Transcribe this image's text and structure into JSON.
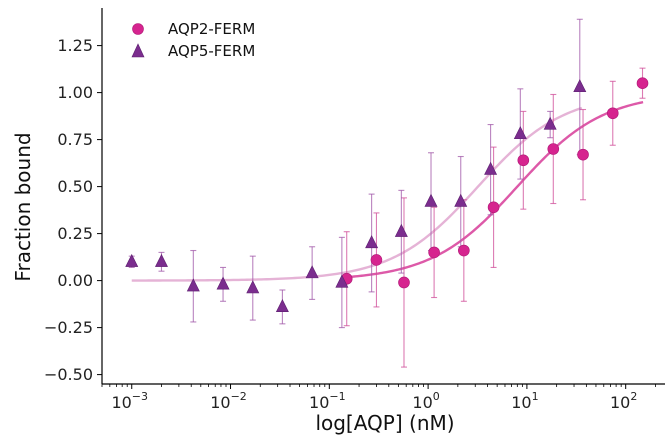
{
  "chart_data": {
    "type": "scatter",
    "title": "",
    "xlabel": "log[AQP] (nM)",
    "ylabel": "Fraction bound",
    "xscale": "log",
    "xlim": [
      0.0005,
      250
    ],
    "ylim": [
      -0.55,
      1.45
    ],
    "yticks": [
      -0.5,
      -0.25,
      0.0,
      0.25,
      0.5,
      0.75,
      1.0,
      1.25
    ],
    "ytick_labels": [
      "−0.50",
      "−0.25",
      "0.00",
      "0.25",
      "0.50",
      "0.75",
      "1.00",
      "1.25"
    ],
    "xticks": [
      0.001,
      0.01,
      0.1,
      1,
      10,
      100
    ],
    "xtick_labels": [
      {
        "base": "10",
        "exp": "−3"
      },
      {
        "base": "10",
        "exp": "−2"
      },
      {
        "base": "10",
        "exp": "−1"
      },
      {
        "base": "10",
        "exp": "0"
      },
      {
        "base": "10",
        "exp": "1"
      },
      {
        "base": "10",
        "exp": "2"
      }
    ],
    "grid": false,
    "legend_position": "top-left",
    "series": [
      {
        "name": "AQP2-FERM",
        "marker": "circle",
        "color": "#d6248f",
        "fit_color": "#d9479f",
        "fit": {
          "bottom": 0.0,
          "top": 1.0,
          "kd": 8.0,
          "xmin": 0.15,
          "xmax": 150
        },
        "points": [
          {
            "x": 0.15,
            "y": 0.01,
            "err": 0.25
          },
          {
            "x": 0.3,
            "y": 0.11,
            "err": 0.25
          },
          {
            "x": 0.57,
            "y": -0.01,
            "err": 0.45
          },
          {
            "x": 1.15,
            "y": 0.15,
            "err": 0.24
          },
          {
            "x": 2.3,
            "y": 0.16,
            "err": 0.27
          },
          {
            "x": 4.6,
            "y": 0.39,
            "err": 0.32
          },
          {
            "x": 9.2,
            "y": 0.64,
            "err": 0.26
          },
          {
            "x": 18.5,
            "y": 0.7,
            "err": 0.29
          },
          {
            "x": 37,
            "y": 0.67,
            "err": 0.24
          },
          {
            "x": 74,
            "y": 0.89,
            "err": 0.17
          },
          {
            "x": 148,
            "y": 1.05,
            "err": 0.08
          }
        ]
      },
      {
        "name": "AQP5-FERM",
        "marker": "triangle",
        "color": "#7b2d8e",
        "fit_color": "#e0a6cf",
        "fit": {
          "bottom": 0.0,
          "top": 1.0,
          "kd": 3.2,
          "xmin": 0.001,
          "xmax": 36
        },
        "points": [
          {
            "x": 0.001,
            "y": 0.1,
            "err": 0.03
          },
          {
            "x": 0.002,
            "y": 0.1,
            "err": 0.05
          },
          {
            "x": 0.0042,
            "y": -0.03,
            "err": 0.19
          },
          {
            "x": 0.0084,
            "y": -0.02,
            "err": 0.09
          },
          {
            "x": 0.0168,
            "y": -0.04,
            "err": 0.17
          },
          {
            "x": 0.0335,
            "y": -0.14,
            "err": 0.09
          },
          {
            "x": 0.067,
            "y": 0.04,
            "err": 0.14
          },
          {
            "x": 0.134,
            "y": -0.01,
            "err": 0.24
          },
          {
            "x": 0.268,
            "y": 0.2,
            "err": 0.26
          },
          {
            "x": 0.536,
            "y": 0.26,
            "err": 0.22
          },
          {
            "x": 1.07,
            "y": 0.42,
            "err": 0.26
          },
          {
            "x": 2.14,
            "y": 0.42,
            "err": 0.24
          },
          {
            "x": 4.29,
            "y": 0.59,
            "err": 0.24
          },
          {
            "x": 8.58,
            "y": 0.78,
            "err": 0.24
          },
          {
            "x": 17.2,
            "y": 0.83,
            "err": 0.07
          },
          {
            "x": 34.3,
            "y": 1.03,
            "err": 0.36
          }
        ]
      }
    ]
  }
}
